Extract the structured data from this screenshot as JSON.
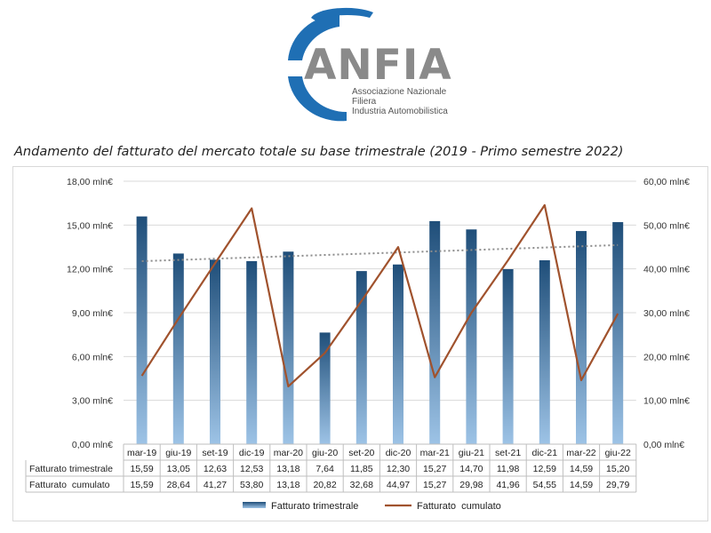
{
  "header": {
    "logo_text": "ANFIA",
    "logo_sub_1": "Associazione Nazionale",
    "logo_sub_2": "Filiera",
    "logo_sub_3": "Industria Automobilistica",
    "title": "Andamento del fatturato del mercato totale su base trimestrale (2019 - Primo semestre 2022)"
  },
  "chart_data": {
    "type": "bar",
    "categories": [
      "mar-19",
      "giu-19",
      "set-19",
      "dic-19",
      "mar-20",
      "giu-20",
      "set-20",
      "dic-20",
      "mar-21",
      "giu-21",
      "set-21",
      "dic-21",
      "mar-22",
      "giu-22"
    ],
    "series": [
      {
        "name": "Fatturato trimestrale",
        "type": "bar",
        "axis": "left",
        "values": [
          15.59,
          13.05,
          12.63,
          12.53,
          13.18,
          7.64,
          11.85,
          12.3,
          15.27,
          14.7,
          11.98,
          12.59,
          14.59,
          15.2
        ],
        "labels": [
          "15,59",
          "13,05",
          "12,63",
          "12,53",
          "13,18",
          "7,64",
          "11,85",
          "12,30",
          "15,27",
          "14,70",
          "11,98",
          "12,59",
          "14,59",
          "15,20"
        ]
      },
      {
        "name": "Fatturato  cumulato",
        "type": "line",
        "axis": "right",
        "values": [
          15.59,
          28.64,
          41.27,
          53.8,
          13.18,
          20.82,
          32.68,
          44.97,
          15.27,
          29.98,
          41.96,
          54.55,
          14.59,
          29.79
        ],
        "labels": [
          "15,59",
          "28,64",
          "41,27",
          "53,80",
          "13,18",
          "20,82",
          "32,68",
          "44,97",
          "15,27",
          "29,98",
          "41,96",
          "54,55",
          "14,59",
          "29,79"
        ]
      }
    ],
    "trendline": {
      "series": "Fatturato trimestrale",
      "type": "linear",
      "style": "dotted"
    },
    "left_axis": {
      "ylim": [
        0,
        18
      ],
      "ticks": [
        "0,00 mln€",
        "3,00 mln€",
        "6,00 mln€",
        "9,00 mln€",
        "12,00 mln€",
        "15,00 mln€",
        "18,00 mln€"
      ]
    },
    "right_axis": {
      "ylim": [
        0,
        60
      ],
      "ticks": [
        "0,00 mln€",
        "10,00 mln€",
        "20,00 mln€",
        "30,00 mln€",
        "40,00 mln€",
        "50,00 mln€",
        "60,00 mln€"
      ]
    },
    "table_row_labels": [
      "Fatturato trimestrale",
      "Fatturato  cumulato"
    ],
    "legend": {
      "position": "bottom",
      "entries": [
        "Fatturato trimestrale",
        "Fatturato  cumulato"
      ]
    },
    "grid": true,
    "colors": {
      "bar_top": "#1f4e79",
      "bar_bottom": "#9dc3e6",
      "line": "#a0522d",
      "trend": "#8c8c8c",
      "grid": "#d9d9d9"
    }
  },
  "logo_colors": {
    "arc": "#1f6fb4",
    "text": "#8a8a8a"
  }
}
